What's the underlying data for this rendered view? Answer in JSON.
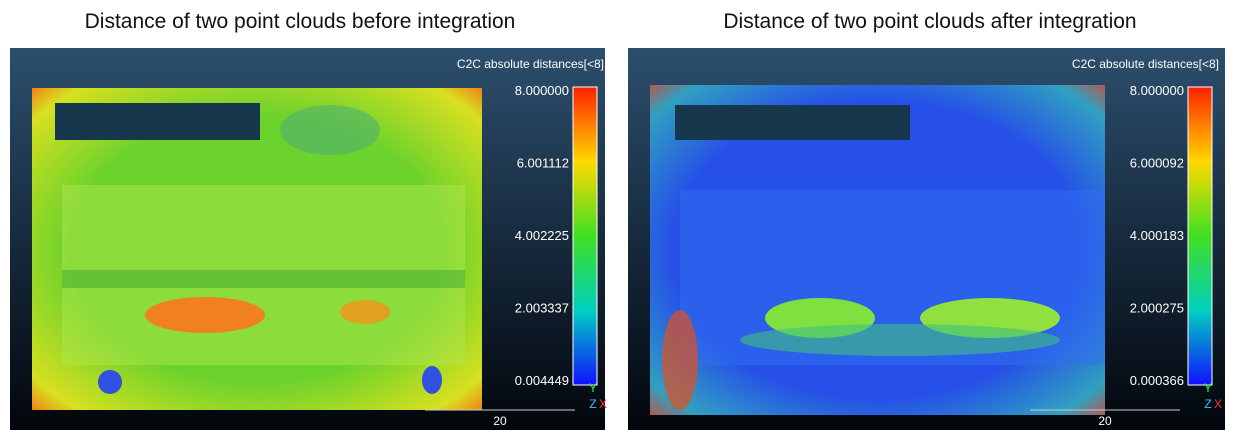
{
  "panels": [
    {
      "title": "Distance of two point clouds before integration",
      "scalar_field": "C2C absolute distances[<8]",
      "colorbar_ticks": [
        "8.000000",
        "6.001112",
        "4.002225",
        "2.003337",
        "0.004449"
      ],
      "scale_label": "20",
      "axes": [
        "Y",
        "Z",
        "X"
      ]
    },
    {
      "title": "Distance of two point clouds after integration",
      "scalar_field": "C2C absolute distances[<8]",
      "colorbar_ticks": [
        "8.000000",
        "6.000092",
        "4.000183",
        "2.000275",
        "0.000366"
      ],
      "scale_label": "20",
      "axes": [
        "Y",
        "Z",
        "X"
      ]
    }
  ]
}
